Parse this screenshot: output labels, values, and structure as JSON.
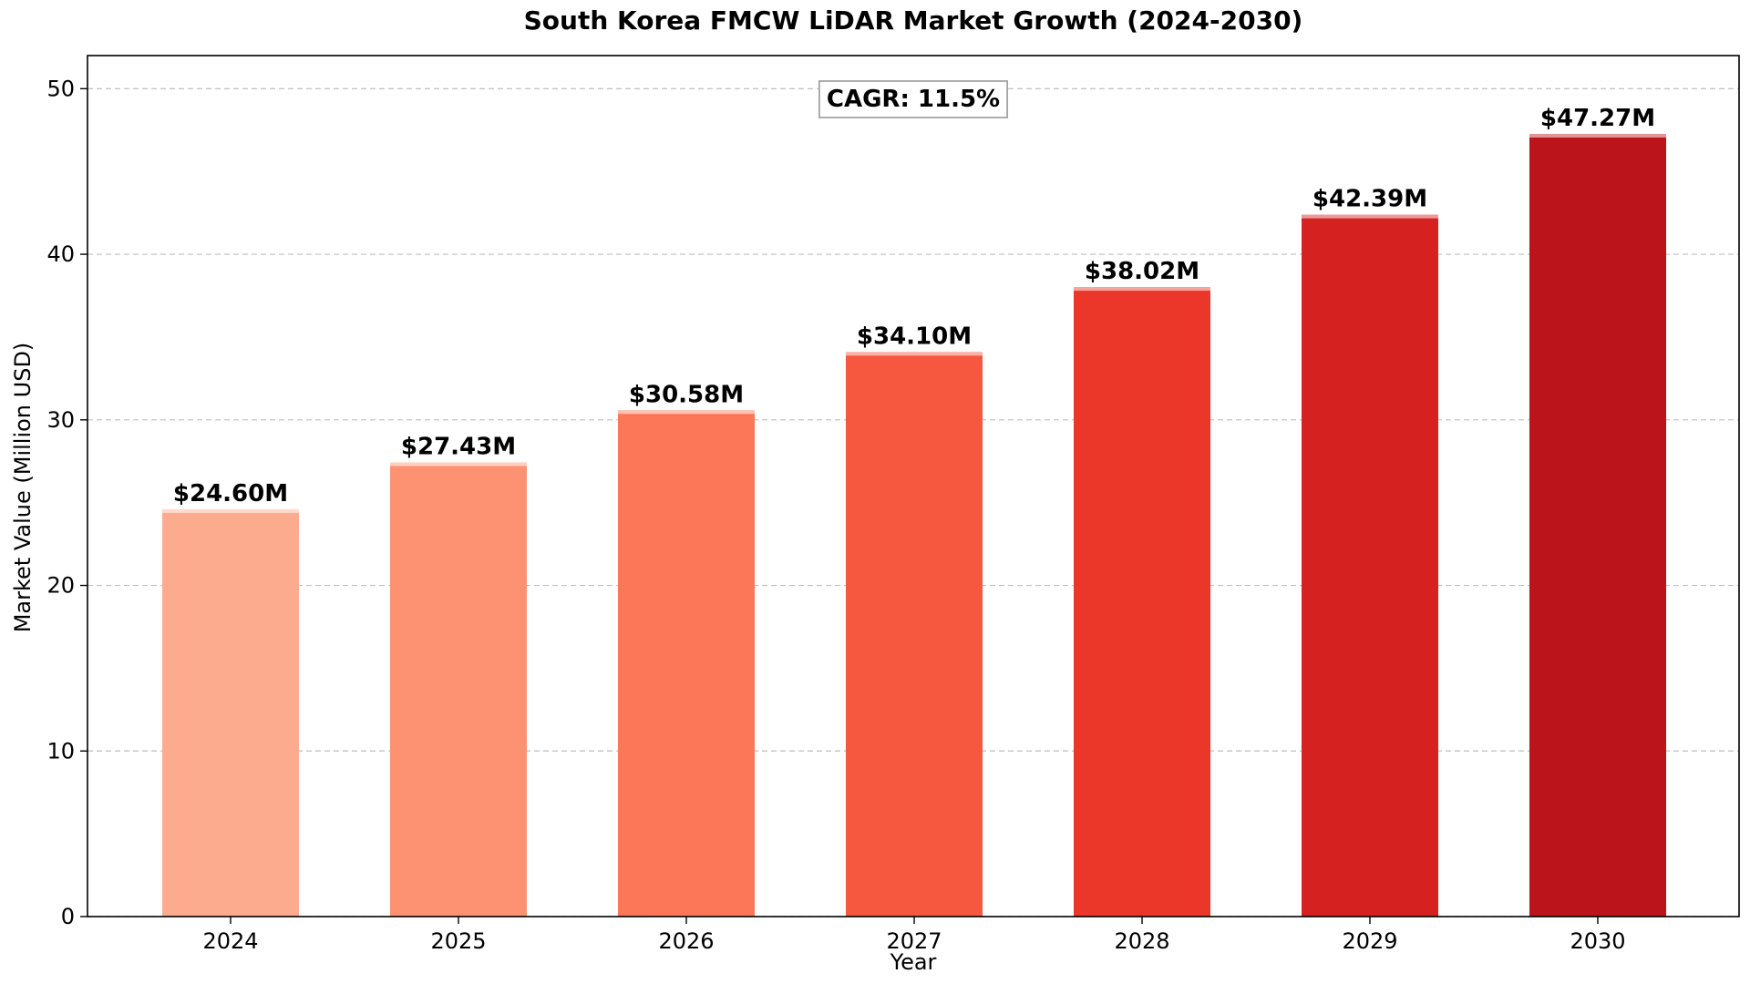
{
  "chart_data": {
    "type": "bar",
    "title": "South Korea FMCW LiDAR Market Growth (2024-2030)",
    "xlabel": "Year",
    "ylabel": "Market Value (Million USD)",
    "categories": [
      "2024",
      "2025",
      "2026",
      "2027",
      "2028",
      "2029",
      "2030"
    ],
    "values": [
      24.6,
      27.43,
      30.58,
      34.1,
      38.02,
      42.39,
      47.27
    ],
    "value_labels": [
      "$24.60M",
      "$27.43M",
      "$30.58M",
      "$34.10M",
      "$38.02M",
      "$42.39M",
      "$47.27M"
    ],
    "bar_colors": [
      "#fcab8f",
      "#fc9272",
      "#fb7757",
      "#f6583f",
      "#eb372a",
      "#d52221",
      "#bb141a"
    ],
    "ylim": [
      0,
      52
    ],
    "yticks": [
      0,
      10,
      20,
      30,
      40,
      50
    ],
    "grid": true,
    "grid_axis": "y",
    "annotation": "CAGR: 11.5%"
  }
}
